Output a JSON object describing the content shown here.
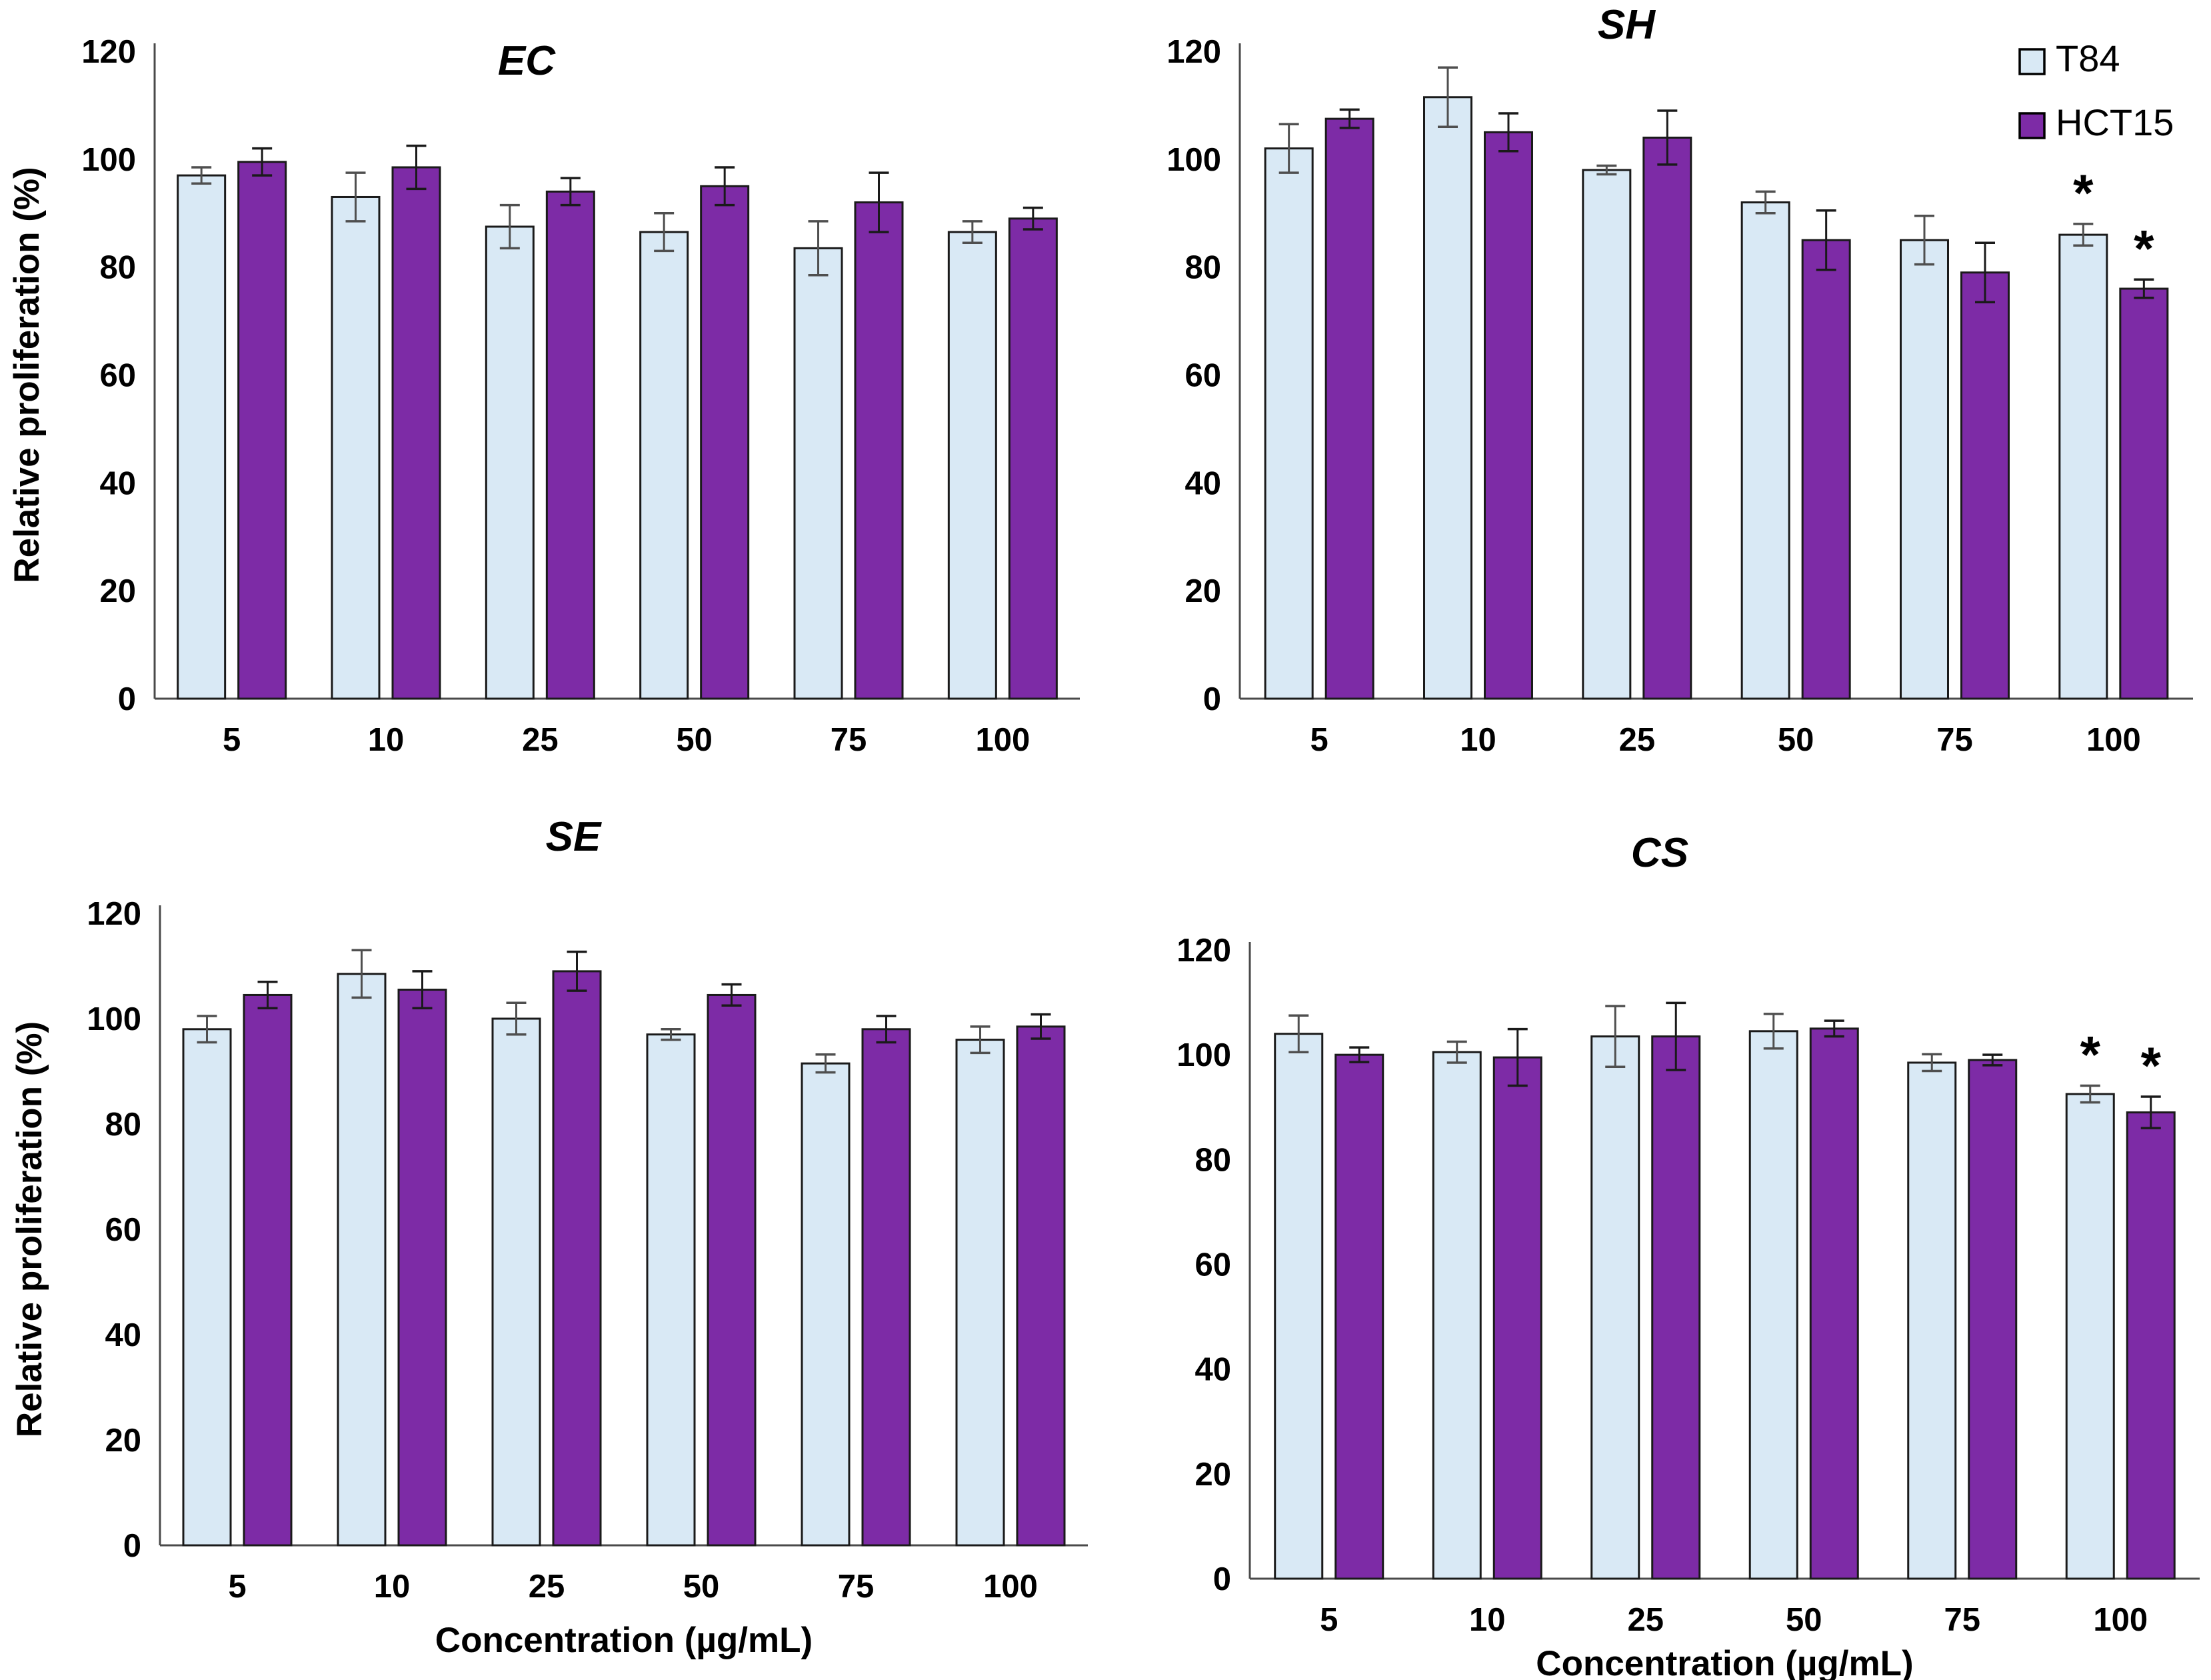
{
  "figure": {
    "ylabel": "Relative proliferation (%)",
    "xlabel": "Concentration (µg/mL)",
    "significance_marker": "*",
    "colors": {
      "t84_fill": "#d9e9f5",
      "hct15_fill": "#7d2ba6",
      "bar_border": "#1a1a1a",
      "axis_line": "#4a4a4a",
      "error_bar_t84": "#4f4f4f",
      "error_bar_hct15": "#1a1a1a",
      "text": "#000000",
      "background": "#ffffff"
    },
    "legend": {
      "position": "top-right-of-SH-panel",
      "items": [
        {
          "label": "T84",
          "color": "#d9e9f5"
        },
        {
          "label": "HCT15",
          "color": "#7d2ba6"
        }
      ]
    }
  },
  "chart_data": [
    {
      "type": "bar",
      "title": "EC",
      "xlabel_visible": false,
      "ylabel_visible": true,
      "legend_visible": false,
      "categories": [
        "5",
        "10",
        "25",
        "50",
        "75",
        "100"
      ],
      "ylim": [
        0,
        120
      ],
      "yticks": [
        0,
        20,
        40,
        60,
        80,
        100,
        120
      ],
      "grid": false,
      "series": [
        {
          "name": "T84",
          "values": [
            97,
            93,
            87.5,
            86.5,
            83.5,
            86.5
          ],
          "errors": [
            1.5,
            4.5,
            4,
            3.5,
            5,
            2
          ],
          "significant": []
        },
        {
          "name": "HCT15",
          "values": [
            99.5,
            98.5,
            94,
            95,
            92,
            89
          ],
          "errors": [
            2.5,
            4,
            2.5,
            3.5,
            5.5,
            2
          ],
          "significant": []
        }
      ]
    },
    {
      "type": "bar",
      "title": "SH",
      "xlabel_visible": false,
      "ylabel_visible": false,
      "legend_visible": true,
      "categories": [
        "5",
        "10",
        "25",
        "50",
        "75",
        "100"
      ],
      "ylim": [
        0,
        120
      ],
      "yticks": [
        0,
        20,
        40,
        60,
        80,
        100,
        120
      ],
      "grid": false,
      "series": [
        {
          "name": "T84",
          "values": [
            102,
            111.5,
            98,
            92,
            85,
            86
          ],
          "errors": [
            4.5,
            5.5,
            0.8,
            2,
            4.5,
            2
          ],
          "significant": [
            "100"
          ]
        },
        {
          "name": "HCT15",
          "values": [
            107.5,
            105,
            104,
            85,
            79,
            76
          ],
          "errors": [
            1.7,
            3.5,
            5,
            5.5,
            5.5,
            1.7
          ],
          "significant": [
            "100"
          ]
        }
      ]
    },
    {
      "type": "bar",
      "title": "SE",
      "xlabel_visible": true,
      "ylabel_visible": true,
      "legend_visible": false,
      "categories": [
        "5",
        "10",
        "25",
        "50",
        "75",
        "100"
      ],
      "ylim": [
        0,
        120
      ],
      "yticks": [
        0,
        20,
        40,
        60,
        80,
        100,
        120
      ],
      "grid": false,
      "series": [
        {
          "name": "T84",
          "values": [
            98,
            108.5,
            100,
            97,
            91.5,
            96
          ],
          "errors": [
            2.5,
            4.5,
            3,
            1,
            1.7,
            2.5
          ],
          "significant": []
        },
        {
          "name": "HCT15",
          "values": [
            104.5,
            105.5,
            109,
            104.5,
            98,
            98.5
          ],
          "errors": [
            2.5,
            3.5,
            3.7,
            2,
            2.5,
            2.3
          ],
          "significant": []
        }
      ]
    },
    {
      "type": "bar",
      "title": "CS",
      "xlabel_visible": true,
      "ylabel_visible": false,
      "legend_visible": false,
      "categories": [
        "5",
        "10",
        "25",
        "50",
        "75",
        "100"
      ],
      "ylim": [
        0,
        120
      ],
      "yticks": [
        0,
        20,
        40,
        60,
        80,
        100,
        120
      ],
      "grid": false,
      "series": [
        {
          "name": "T84",
          "values": [
            104,
            100.5,
            103.5,
            104.5,
            98.5,
            92.5
          ],
          "errors": [
            3.5,
            2,
            5.8,
            3.3,
            1.6,
            1.6
          ],
          "significant": [
            "100"
          ]
        },
        {
          "name": "HCT15",
          "values": [
            100,
            99.5,
            103.5,
            105,
            99,
            89
          ],
          "errors": [
            1.4,
            5.4,
            6.4,
            1.5,
            1,
            3
          ],
          "significant": [
            "100"
          ]
        }
      ]
    }
  ]
}
